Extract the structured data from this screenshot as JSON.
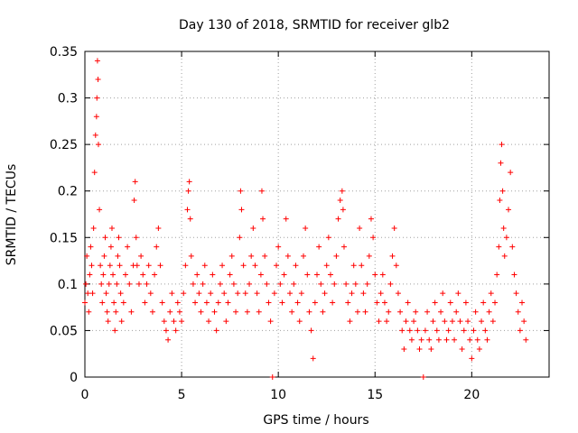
{
  "chart_data": {
    "type": "scatter",
    "title": "Day 130 of 2018, SRMTID for receiver glb2",
    "xlabel": "GPS time / hours",
    "ylabel": "SRMTID / TECUs",
    "xlim": [
      0,
      24
    ],
    "ylim": [
      0,
      0.35
    ],
    "xticks": [
      0,
      5,
      10,
      15,
      20
    ],
    "xtick_labels": [
      "0",
      "5",
      "10",
      "15",
      "20"
    ],
    "yticks": [
      0,
      0.05,
      0.1,
      0.15,
      0.2,
      0.25,
      0.3,
      0.35
    ],
    "ytick_labels": [
      "0",
      "0.05",
      "0.1",
      "0.15",
      "0.2",
      "0.25",
      "0.3",
      "0.35"
    ],
    "grid": true,
    "marker": "+",
    "color": "#ff0000",
    "series": [
      {
        "name": "SRMTID glb2",
        "points": [
          [
            0.0,
            0.08
          ],
          [
            0.05,
            0.1
          ],
          [
            0.1,
            0.13
          ],
          [
            0.15,
            0.09
          ],
          [
            0.2,
            0.07
          ],
          [
            0.25,
            0.11
          ],
          [
            0.3,
            0.14
          ],
          [
            0.35,
            0.12
          ],
          [
            0.4,
            0.09
          ],
          [
            0.45,
            0.16
          ],
          [
            0.5,
            0.22
          ],
          [
            0.55,
            0.26
          ],
          [
            0.6,
            0.28
          ],
          [
            0.62,
            0.3
          ],
          [
            0.65,
            0.34
          ],
          [
            0.68,
            0.32
          ],
          [
            0.7,
            0.25
          ],
          [
            0.75,
            0.18
          ],
          [
            0.8,
            0.12
          ],
          [
            0.85,
            0.1
          ],
          [
            0.9,
            0.08
          ],
          [
            0.95,
            0.11
          ],
          [
            1.0,
            0.13
          ],
          [
            1.05,
            0.15
          ],
          [
            1.1,
            0.09
          ],
          [
            1.15,
            0.07
          ],
          [
            1.2,
            0.06
          ],
          [
            1.25,
            0.1
          ],
          [
            1.3,
            0.12
          ],
          [
            1.35,
            0.14
          ],
          [
            1.4,
            0.16
          ],
          [
            1.45,
            0.11
          ],
          [
            1.5,
            0.08
          ],
          [
            1.55,
            0.05
          ],
          [
            1.6,
            0.07
          ],
          [
            1.65,
            0.1
          ],
          [
            1.7,
            0.13
          ],
          [
            1.75,
            0.15
          ],
          [
            1.8,
            0.12
          ],
          [
            1.85,
            0.09
          ],
          [
            1.9,
            0.06
          ],
          [
            2.0,
            0.08
          ],
          [
            2.1,
            0.11
          ],
          [
            2.2,
            0.14
          ],
          [
            2.3,
            0.1
          ],
          [
            2.4,
            0.07
          ],
          [
            2.5,
            0.12
          ],
          [
            2.55,
            0.19
          ],
          [
            2.6,
            0.21
          ],
          [
            2.65,
            0.15
          ],
          [
            2.7,
            0.12
          ],
          [
            2.8,
            0.1
          ],
          [
            2.9,
            0.13
          ],
          [
            3.0,
            0.11
          ],
          [
            3.1,
            0.08
          ],
          [
            3.2,
            0.1
          ],
          [
            3.3,
            0.12
          ],
          [
            3.4,
            0.09
          ],
          [
            3.5,
            0.07
          ],
          [
            3.6,
            0.11
          ],
          [
            3.7,
            0.14
          ],
          [
            3.8,
            0.16
          ],
          [
            3.9,
            0.12
          ],
          [
            4.0,
            0.08
          ],
          [
            4.1,
            0.06
          ],
          [
            4.2,
            0.05
          ],
          [
            4.3,
            0.04
          ],
          [
            4.4,
            0.07
          ],
          [
            4.5,
            0.09
          ],
          [
            4.6,
            0.06
          ],
          [
            4.7,
            0.05
          ],
          [
            4.8,
            0.08
          ],
          [
            4.9,
            0.07
          ],
          [
            5.0,
            0.06
          ],
          [
            5.1,
            0.09
          ],
          [
            5.2,
            0.12
          ],
          [
            5.3,
            0.18
          ],
          [
            5.35,
            0.2
          ],
          [
            5.4,
            0.21
          ],
          [
            5.45,
            0.17
          ],
          [
            5.5,
            0.13
          ],
          [
            5.6,
            0.1
          ],
          [
            5.7,
            0.08
          ],
          [
            5.8,
            0.11
          ],
          [
            5.9,
            0.09
          ],
          [
            6.0,
            0.07
          ],
          [
            6.1,
            0.1
          ],
          [
            6.2,
            0.12
          ],
          [
            6.3,
            0.08
          ],
          [
            6.4,
            0.06
          ],
          [
            6.5,
            0.09
          ],
          [
            6.6,
            0.11
          ],
          [
            6.7,
            0.07
          ],
          [
            6.8,
            0.05
          ],
          [
            6.9,
            0.08
          ],
          [
            7.0,
            0.1
          ],
          [
            7.1,
            0.12
          ],
          [
            7.2,
            0.09
          ],
          [
            7.3,
            0.06
          ],
          [
            7.4,
            0.08
          ],
          [
            7.5,
            0.11
          ],
          [
            7.6,
            0.13
          ],
          [
            7.7,
            0.1
          ],
          [
            7.8,
            0.07
          ],
          [
            7.9,
            0.09
          ],
          [
            8.0,
            0.15
          ],
          [
            8.05,
            0.2
          ],
          [
            8.1,
            0.18
          ],
          [
            8.2,
            0.12
          ],
          [
            8.3,
            0.09
          ],
          [
            8.4,
            0.07
          ],
          [
            8.5,
            0.1
          ],
          [
            8.6,
            0.13
          ],
          [
            8.7,
            0.16
          ],
          [
            8.8,
            0.12
          ],
          [
            8.9,
            0.09
          ],
          [
            9.0,
            0.07
          ],
          [
            9.1,
            0.11
          ],
          [
            9.15,
            0.2
          ],
          [
            9.2,
            0.17
          ],
          [
            9.3,
            0.13
          ],
          [
            9.4,
            0.1
          ],
          [
            9.5,
            0.08
          ],
          [
            9.6,
            0.06
          ],
          [
            9.7,
            0.0
          ],
          [
            9.8,
            0.09
          ],
          [
            9.9,
            0.12
          ],
          [
            10.0,
            0.14
          ],
          [
            10.1,
            0.1
          ],
          [
            10.2,
            0.08
          ],
          [
            10.3,
            0.11
          ],
          [
            10.4,
            0.17
          ],
          [
            10.5,
            0.13
          ],
          [
            10.6,
            0.09
          ],
          [
            10.7,
            0.07
          ],
          [
            10.8,
            0.1
          ],
          [
            10.9,
            0.12
          ],
          [
            11.0,
            0.08
          ],
          [
            11.1,
            0.06
          ],
          [
            11.2,
            0.09
          ],
          [
            11.3,
            0.13
          ],
          [
            11.4,
            0.16
          ],
          [
            11.5,
            0.11
          ],
          [
            11.6,
            0.07
          ],
          [
            11.7,
            0.05
          ],
          [
            11.8,
            0.02
          ],
          [
            11.9,
            0.08
          ],
          [
            12.0,
            0.11
          ],
          [
            12.1,
            0.14
          ],
          [
            12.2,
            0.1
          ],
          [
            12.3,
            0.07
          ],
          [
            12.4,
            0.09
          ],
          [
            12.5,
            0.12
          ],
          [
            12.6,
            0.15
          ],
          [
            12.7,
            0.11
          ],
          [
            12.8,
            0.08
          ],
          [
            12.9,
            0.1
          ],
          [
            13.0,
            0.13
          ],
          [
            13.1,
            0.17
          ],
          [
            13.2,
            0.19
          ],
          [
            13.3,
            0.2
          ],
          [
            13.35,
            0.18
          ],
          [
            13.4,
            0.14
          ],
          [
            13.5,
            0.1
          ],
          [
            13.6,
            0.08
          ],
          [
            13.7,
            0.06
          ],
          [
            13.8,
            0.09
          ],
          [
            13.9,
            0.12
          ],
          [
            14.0,
            0.1
          ],
          [
            14.1,
            0.07
          ],
          [
            14.2,
            0.16
          ],
          [
            14.3,
            0.12
          ],
          [
            14.4,
            0.09
          ],
          [
            14.5,
            0.07
          ],
          [
            14.6,
            0.1
          ],
          [
            14.7,
            0.13
          ],
          [
            14.8,
            0.17
          ],
          [
            14.9,
            0.15
          ],
          [
            15.0,
            0.11
          ],
          [
            15.1,
            0.08
          ],
          [
            15.2,
            0.06
          ],
          [
            15.3,
            0.09
          ],
          [
            15.4,
            0.11
          ],
          [
            15.5,
            0.08
          ],
          [
            15.6,
            0.06
          ],
          [
            15.7,
            0.07
          ],
          [
            15.8,
            0.1
          ],
          [
            15.9,
            0.13
          ],
          [
            16.0,
            0.16
          ],
          [
            16.1,
            0.12
          ],
          [
            16.2,
            0.09
          ],
          [
            16.3,
            0.07
          ],
          [
            16.4,
            0.05
          ],
          [
            16.5,
            0.03
          ],
          [
            16.6,
            0.06
          ],
          [
            16.7,
            0.08
          ],
          [
            16.8,
            0.05
          ],
          [
            16.9,
            0.04
          ],
          [
            17.0,
            0.06
          ],
          [
            17.1,
            0.07
          ],
          [
            17.2,
            0.05
          ],
          [
            17.3,
            0.03
          ],
          [
            17.4,
            0.04
          ],
          [
            17.5,
            0.0
          ],
          [
            17.6,
            0.05
          ],
          [
            17.7,
            0.07
          ],
          [
            17.8,
            0.04
          ],
          [
            17.9,
            0.03
          ],
          [
            18.0,
            0.06
          ],
          [
            18.1,
            0.08
          ],
          [
            18.2,
            0.05
          ],
          [
            18.3,
            0.04
          ],
          [
            18.4,
            0.07
          ],
          [
            18.5,
            0.09
          ],
          [
            18.6,
            0.06
          ],
          [
            18.7,
            0.04
          ],
          [
            18.8,
            0.05
          ],
          [
            18.9,
            0.08
          ],
          [
            19.0,
            0.06
          ],
          [
            19.1,
            0.04
          ],
          [
            19.2,
            0.07
          ],
          [
            19.3,
            0.09
          ],
          [
            19.4,
            0.06
          ],
          [
            19.5,
            0.03
          ],
          [
            19.6,
            0.05
          ],
          [
            19.7,
            0.08
          ],
          [
            19.8,
            0.06
          ],
          [
            19.9,
            0.04
          ],
          [
            20.0,
            0.02
          ],
          [
            20.1,
            0.05
          ],
          [
            20.2,
            0.07
          ],
          [
            20.3,
            0.04
          ],
          [
            20.4,
            0.03
          ],
          [
            20.5,
            0.06
          ],
          [
            20.6,
            0.08
          ],
          [
            20.7,
            0.05
          ],
          [
            20.8,
            0.04
          ],
          [
            20.9,
            0.07
          ],
          [
            21.0,
            0.09
          ],
          [
            21.1,
            0.06
          ],
          [
            21.2,
            0.08
          ],
          [
            21.3,
            0.11
          ],
          [
            21.4,
            0.14
          ],
          [
            21.45,
            0.19
          ],
          [
            21.5,
            0.23
          ],
          [
            21.55,
            0.25
          ],
          [
            21.6,
            0.2
          ],
          [
            21.65,
            0.16
          ],
          [
            21.7,
            0.13
          ],
          [
            21.8,
            0.15
          ],
          [
            21.9,
            0.18
          ],
          [
            22.0,
            0.22
          ],
          [
            22.1,
            0.14
          ],
          [
            22.2,
            0.11
          ],
          [
            22.3,
            0.09
          ],
          [
            22.4,
            0.07
          ],
          [
            22.5,
            0.05
          ],
          [
            22.6,
            0.08
          ],
          [
            22.7,
            0.06
          ],
          [
            22.8,
            0.04
          ]
        ]
      }
    ]
  }
}
